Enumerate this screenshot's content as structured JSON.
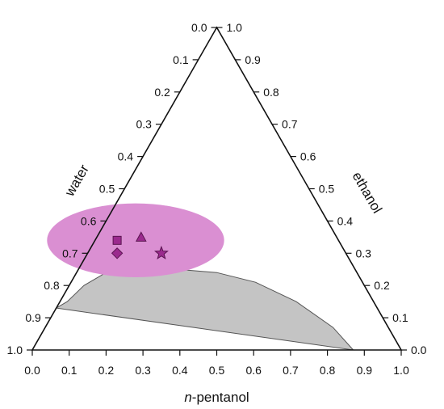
{
  "chart_data": {
    "type": "ternary",
    "axes": {
      "bottom": {
        "label_italic": "n",
        "label_rest": "-pentanol",
        "range": [
          0.0,
          1.0
        ]
      },
      "left": {
        "label": "water",
        "range": [
          0.0,
          1.0
        ]
      },
      "right": {
        "label": "ethanol",
        "range": [
          0.0,
          1.0
        ]
      }
    },
    "ticks": [
      0.0,
      0.1,
      0.2,
      0.3,
      0.4,
      0.5,
      0.6,
      0.7,
      0.8,
      0.9,
      1.0
    ],
    "tick_labels": [
      "0.0",
      "0.1",
      "0.2",
      "0.3",
      "0.4",
      "0.5",
      "0.6",
      "0.7",
      "0.8",
      "0.9",
      "1.0"
    ],
    "two_phase_region": {
      "fill_color": "#c4c4c4",
      "edge_color": "#555555",
      "boundary": [
        {
          "water": 0.87,
          "ethanol": 0.13,
          "n_pentanol": 0.0
        },
        {
          "water": 0.83,
          "ethanol": 0.15,
          "n_pentanol": 0.02
        },
        {
          "water": 0.76,
          "ethanol": 0.2,
          "n_pentanol": 0.04
        },
        {
          "water": 0.68,
          "ethanol": 0.24,
          "n_pentanol": 0.08
        },
        {
          "water": 0.58,
          "ethanol": 0.25,
          "n_pentanol": 0.17
        },
        {
          "water": 0.48,
          "ethanol": 0.25,
          "n_pentanol": 0.27
        },
        {
          "water": 0.38,
          "ethanol": 0.24,
          "n_pentanol": 0.38
        },
        {
          "water": 0.29,
          "ethanol": 0.21,
          "n_pentanol": 0.5
        },
        {
          "water": 0.21,
          "ethanol": 0.15,
          "n_pentanol": 0.64
        },
        {
          "water": 0.15,
          "ethanol": 0.07,
          "n_pentanol": 0.78
        },
        {
          "water": 0.13,
          "ethanol": 0.0,
          "n_pentanol": 0.87
        }
      ]
    },
    "highlight_region": {
      "fill_color": "#da8fd2",
      "center": {
        "water": 0.55,
        "ethanol": 0.34,
        "n_pentanol": 0.11
      },
      "radius_x_frac": 0.24,
      "radius_y_frac": 0.1
    },
    "points": [
      {
        "marker": "square",
        "water": 0.6,
        "ethanol": 0.34,
        "n_pentanol": 0.06,
        "color": "#9b2a8e"
      },
      {
        "marker": "triangle",
        "water": 0.53,
        "ethanol": 0.35,
        "n_pentanol": 0.12,
        "color": "#9b2a8e"
      },
      {
        "marker": "diamond",
        "water": 0.62,
        "ethanol": 0.3,
        "n_pentanol": 0.08,
        "color": "#9b2a8e"
      },
      {
        "marker": "star",
        "water": 0.5,
        "ethanol": 0.3,
        "n_pentanol": 0.2,
        "color": "#9b2a8e"
      }
    ]
  }
}
